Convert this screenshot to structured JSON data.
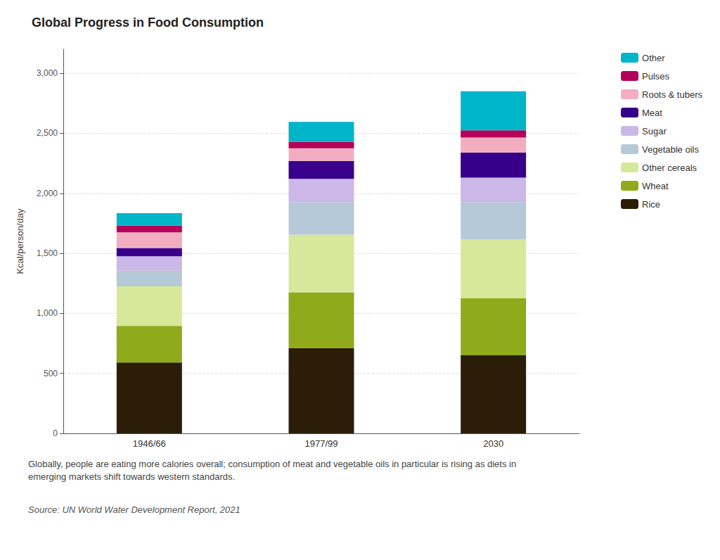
{
  "chart_data": {
    "type": "bar",
    "stacked": true,
    "title": "Global Progress in Food Consumption",
    "ylabel": "Kcal/person/day",
    "categories": [
      "1946/66",
      "1977/99",
      "2030"
    ],
    "series": [
      {
        "name": "Rice",
        "color": "#2b1d08",
        "values": [
          590,
          710,
          650
        ]
      },
      {
        "name": "Wheat",
        "color": "#8faa1a",
        "values": [
          305,
          465,
          475
        ]
      },
      {
        "name": "Other cereals",
        "color": "#d8e89a",
        "values": [
          330,
          480,
          490
        ]
      },
      {
        "name": "Vegetable oils",
        "color": "#b5c9d8",
        "values": [
          130,
          270,
          310
        ]
      },
      {
        "name": "Sugar",
        "color": "#cbb8e8",
        "values": [
          120,
          195,
          205
        ]
      },
      {
        "name": "Meat",
        "color": "#38008a",
        "values": [
          70,
          150,
          210
        ]
      },
      {
        "name": "Roots & tubers",
        "color": "#f2aec0",
        "values": [
          130,
          105,
          125
        ]
      },
      {
        "name": "Pulses",
        "color": "#b5005a",
        "values": [
          55,
          55,
          60
        ]
      },
      {
        "name": "Other",
        "color": "#00b5c8",
        "values": [
          105,
          165,
          325
        ]
      }
    ],
    "ylim": [
      0,
      3200
    ],
    "yticks": [
      0,
      500,
      {
        "value": 1000,
        "label": "1,000"
      },
      {
        "value": 1500,
        "label": "1,500"
      },
      {
        "value": 2000,
        "label": "2,000"
      },
      {
        "value": 2500,
        "label": "2,500"
      },
      {
        "value": 3000,
        "label": "3,000"
      }
    ],
    "grid": true,
    "legend": "right",
    "annotations": [
      "Globally, people are eating more calories overall; consumption of meat and vegetable oils in particular is rising as diets in emerging markets shift towards western standards.",
      "Source: UN World Water Development Report, 2021"
    ]
  }
}
